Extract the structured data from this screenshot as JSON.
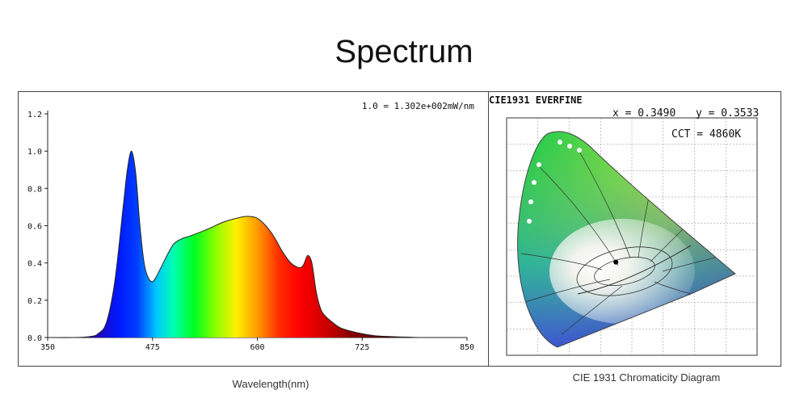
{
  "title": "Spectrum",
  "chart_data": [
    {
      "type": "area",
      "title": "",
      "xlabel": "Wavelength(nm)",
      "ylabel": "",
      "annotation": "1.0 = 1.302e+002mW/nm",
      "xlim": [
        350,
        850
      ],
      "ylim": [
        0,
        1.2
      ],
      "x_ticks": [
        "350",
        "475",
        "600",
        "725",
        "850"
      ],
      "y_ticks": [
        "0.0",
        "0.2",
        "0.4",
        "0.6",
        "0.8",
        "1.0",
        "1.2"
      ],
      "grid": false,
      "fill": "wavelength-colored spectrum",
      "series": [
        {
          "x": [
            350,
            380,
            400,
            410,
            420,
            430,
            440,
            445,
            450,
            455,
            460,
            465,
            470,
            475,
            480,
            490,
            500,
            510,
            520,
            540,
            560,
            580,
            590,
            600,
            610,
            620,
            630,
            640,
            650,
            655,
            660,
            665,
            670,
            675,
            680,
            690,
            700,
            720,
            740,
            760,
            780,
            800,
            850
          ],
          "y": [
            0.0,
            0.0,
            0.005,
            0.02,
            0.08,
            0.3,
            0.7,
            0.9,
            1.0,
            0.88,
            0.6,
            0.4,
            0.32,
            0.3,
            0.33,
            0.42,
            0.5,
            0.53,
            0.545,
            0.58,
            0.62,
            0.645,
            0.65,
            0.64,
            0.6,
            0.54,
            0.46,
            0.4,
            0.375,
            0.39,
            0.44,
            0.4,
            0.25,
            0.16,
            0.12,
            0.08,
            0.05,
            0.025,
            0.01,
            0.005,
            0.002,
            0.0,
            0.0
          ]
        }
      ]
    },
    {
      "type": "scatter",
      "title": "CIE1931 EVERFINE",
      "caption": "CIE 1931 Chromaticity Diagram",
      "readout_x": "x = 0.3490",
      "readout_y": "y = 0.3533",
      "readout_cct": "CCT = 4860K",
      "xlim": [
        0,
        0.8
      ],
      "ylim": [
        0,
        0.9
      ],
      "series": [
        {
          "x": [
            0.349
          ],
          "y": [
            0.3533
          ]
        }
      ]
    }
  ]
}
